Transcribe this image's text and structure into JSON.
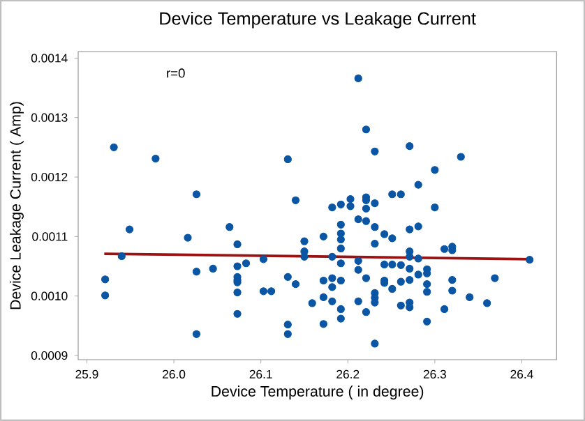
{
  "chart_data": {
    "type": "scatter",
    "title": "Device Temperature vs Leakage Current",
    "xlabel": "Device Temperature ( in degree)",
    "ylabel": "Device Leakage Current ( Amp)",
    "annotations": [
      "r=0"
    ],
    "xlim": [
      25.89,
      26.44
    ],
    "ylim": [
      0.000893,
      0.001411
    ],
    "xticks": [
      25.9,
      {
        "value": 26,
        "label": "26.0"
      },
      26.1,
      26.2,
      26.3,
      26.4
    ],
    "yticks": [
      0.0009,
      {
        "value": 0.001,
        "label": "0.0010"
      },
      0.0011,
      0.0012,
      0.0013,
      0.0014
    ],
    "grid": false,
    "series": [
      {
        "marker": "circle",
        "color": "#0a56a4",
        "x": [
          25.921,
          25.921,
          25.931,
          25.94,
          25.949,
          25.979,
          26.016,
          26.026,
          26.026,
          26.026,
          26.045,
          26.064,
          26.073,
          26.073,
          26.073,
          26.073,
          26.073,
          26.073,
          26.073,
          26.083,
          26.103,
          26.103,
          26.112,
          26.131,
          26.131,
          26.131,
          26.131,
          26.14,
          26.14,
          26.15,
          26.15,
          26.15,
          26.159,
          26.172,
          26.172,
          26.172,
          26.172,
          26.182,
          26.182,
          26.182,
          26.182,
          26.182,
          26.192,
          26.192,
          26.192,
          26.192,
          26.192,
          26.192,
          26.192,
          26.192,
          26.192,
          26.203,
          26.203,
          26.212,
          26.212,
          26.212,
          26.212,
          26.212,
          26.221,
          26.221,
          26.221,
          26.221,
          26.221,
          26.221,
          26.221,
          26.231,
          26.231,
          26.231,
          26.231,
          26.231,
          26.231,
          26.231,
          26.231,
          26.242,
          26.242,
          26.242,
          26.242,
          26.251,
          26.261,
          26.251,
          26.251,
          26.251,
          26.261,
          26.261,
          26.261,
          26.271,
          26.271,
          26.271,
          26.271,
          26.271,
          26.271,
          26.271,
          26.271,
          26.281,
          26.281,
          26.281,
          26.281,
          26.291,
          26.291,
          26.291,
          26.291,
          26.291,
          26.3,
          26.3,
          26.311,
          26.311,
          26.32,
          26.32,
          26.32,
          26.32,
          26.33,
          26.34,
          26.36,
          26.369,
          26.409
        ],
        "values": [
          0.001028,
          0.001001,
          0.00125,
          0.001067,
          0.001112,
          0.001231,
          0.001098,
          0.001171,
          0.001041,
          0.000936,
          0.001046,
          0.001116,
          0.001087,
          0.00105,
          0.001032,
          0.001027,
          0.001023,
          0.001006,
          0.00097,
          0.001055,
          0.001062,
          0.001008,
          0.001008,
          0.00123,
          0.001032,
          0.000952,
          0.000936,
          0.001161,
          0.00102,
          0.001092,
          0.001075,
          0.001066,
          0.000988,
          0.0011,
          0.001026,
          0.000998,
          0.000953,
          0.001149,
          0.001066,
          0.00103,
          0.001015,
          0.000991,
          0.001154,
          0.00112,
          0.001105,
          0.001095,
          0.00108,
          0.001055,
          0.001026,
          0.000978,
          0.000962,
          0.001163,
          0.001151,
          0.001366,
          0.001129,
          0.001059,
          0.001044,
          0.000991,
          0.00128,
          0.001166,
          0.001161,
          0.001147,
          0.001126,
          0.00103,
          0.000973,
          0.001243,
          0.001156,
          0.001116,
          0.001088,
          0.001005,
          0.000997,
          0.000989,
          0.00092,
          0.001104,
          0.001053,
          0.001026,
          0.001022,
          0.001171,
          0.001171,
          0.001097,
          0.001053,
          0.001012,
          0.001052,
          0.001024,
          0.000984,
          0.001252,
          0.001112,
          0.001075,
          0.001066,
          0.001046,
          0.001027,
          0.000989,
          0.000981,
          0.001187,
          0.001117,
          0.001063,
          0.001036,
          0.001045,
          0.001038,
          0.00102,
          0.001007,
          0.000957,
          0.001212,
          0.001149,
          0.001079,
          0.000978,
          0.001083,
          0.001077,
          0.001027,
          0.001009,
          0.001234,
          0.000998,
          0.000988,
          0.00103,
          0.001061
        ]
      },
      {
        "type": "line",
        "marker": "none",
        "color": "#9b1212",
        "x": [
          25.92,
          26.41
        ],
        "values": [
          0.001071,
          0.001062
        ]
      }
    ]
  }
}
